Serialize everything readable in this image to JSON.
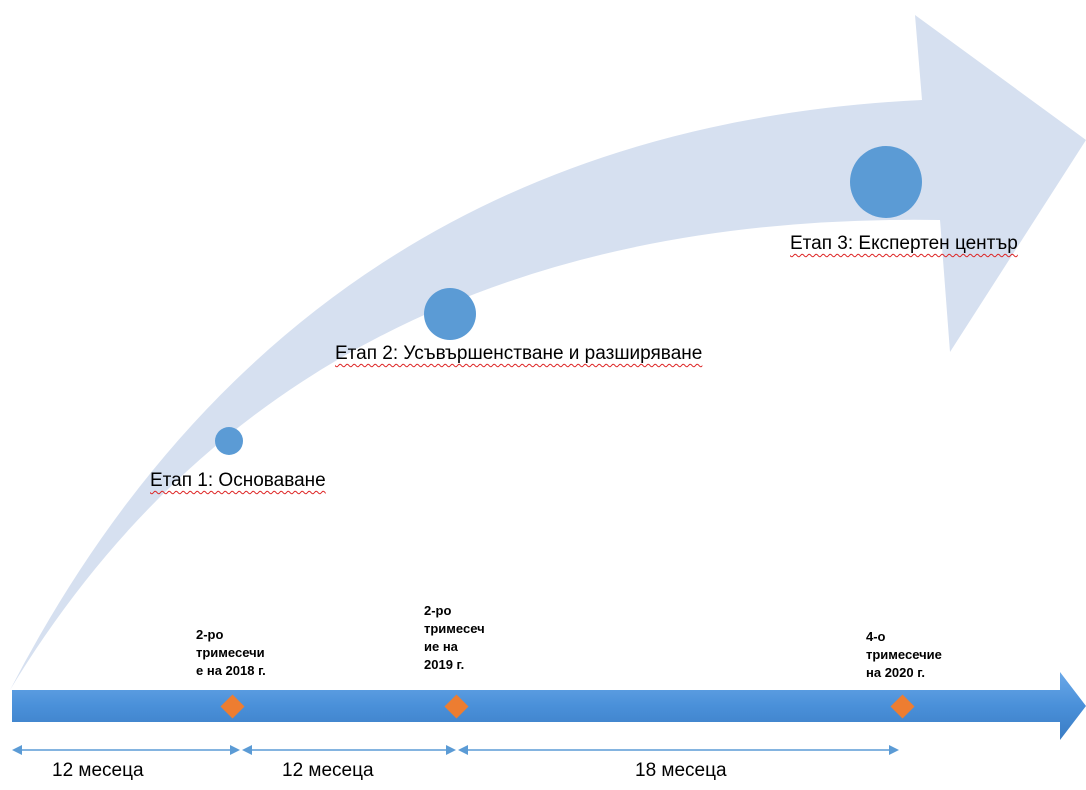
{
  "stages": [
    {
      "label": "Етап 1: Основаване"
    },
    {
      "label": "Етап 2: Усъвършенстване и разширяване"
    },
    {
      "label": "Етап 3: Експертен център"
    }
  ],
  "milestones": [
    {
      "label": "2-ро\nтримесечи\nе на 2018 г."
    },
    {
      "label": "2-ро\nтримесеч\nие на\n2019 г."
    },
    {
      "label": "4-о\nтримесечие\nна 2020 г."
    }
  ],
  "durations": [
    {
      "label": "12 месеца"
    },
    {
      "label": "12 месеца"
    },
    {
      "label": "18 месеца"
    }
  ],
  "colors": {
    "big_arrow": "#d6e0f0",
    "circle": "#5b9bd5",
    "timeline": "#4a90d9",
    "diamond": "#ed7d31",
    "duration_arrow": "#5b9bd5"
  }
}
